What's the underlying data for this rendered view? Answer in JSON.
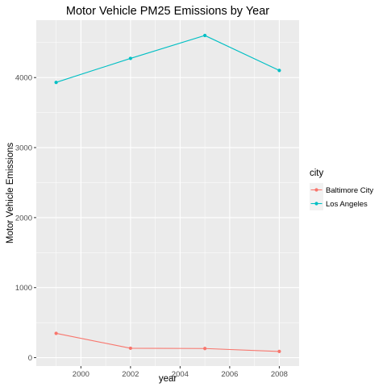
{
  "chart_data": {
    "type": "line",
    "title": "Motor Vehicle PM25 Emissions by Year",
    "xlabel": "year",
    "ylabel": "Motor Vehicle Emissions",
    "x": [
      1999,
      2002,
      2005,
      2008
    ],
    "xlim": [
      1998.2,
      2008.8
    ],
    "ylim": [
      -120,
      4820
    ],
    "x_ticks": [
      2000,
      2002,
      2004,
      2006,
      2008
    ],
    "x_tick_labels": [
      "2000",
      "2002",
      "2004",
      "2006",
      "2008"
    ],
    "y_ticks": [
      0,
      1000,
      2000,
      3000,
      4000
    ],
    "y_tick_labels": [
      "0",
      "1000",
      "2000",
      "3000",
      "4000"
    ],
    "grid": true,
    "legend_title": "city",
    "legend_position": "right",
    "series": [
      {
        "name": "Baltimore City",
        "color": "#F8766D",
        "values": [
          346.8,
          134.3,
          130.4,
          88.3
        ]
      },
      {
        "name": "Los Angeles",
        "color": "#00BFC4",
        "values": [
          3931,
          4274,
          4601,
          4102
        ]
      }
    ]
  }
}
